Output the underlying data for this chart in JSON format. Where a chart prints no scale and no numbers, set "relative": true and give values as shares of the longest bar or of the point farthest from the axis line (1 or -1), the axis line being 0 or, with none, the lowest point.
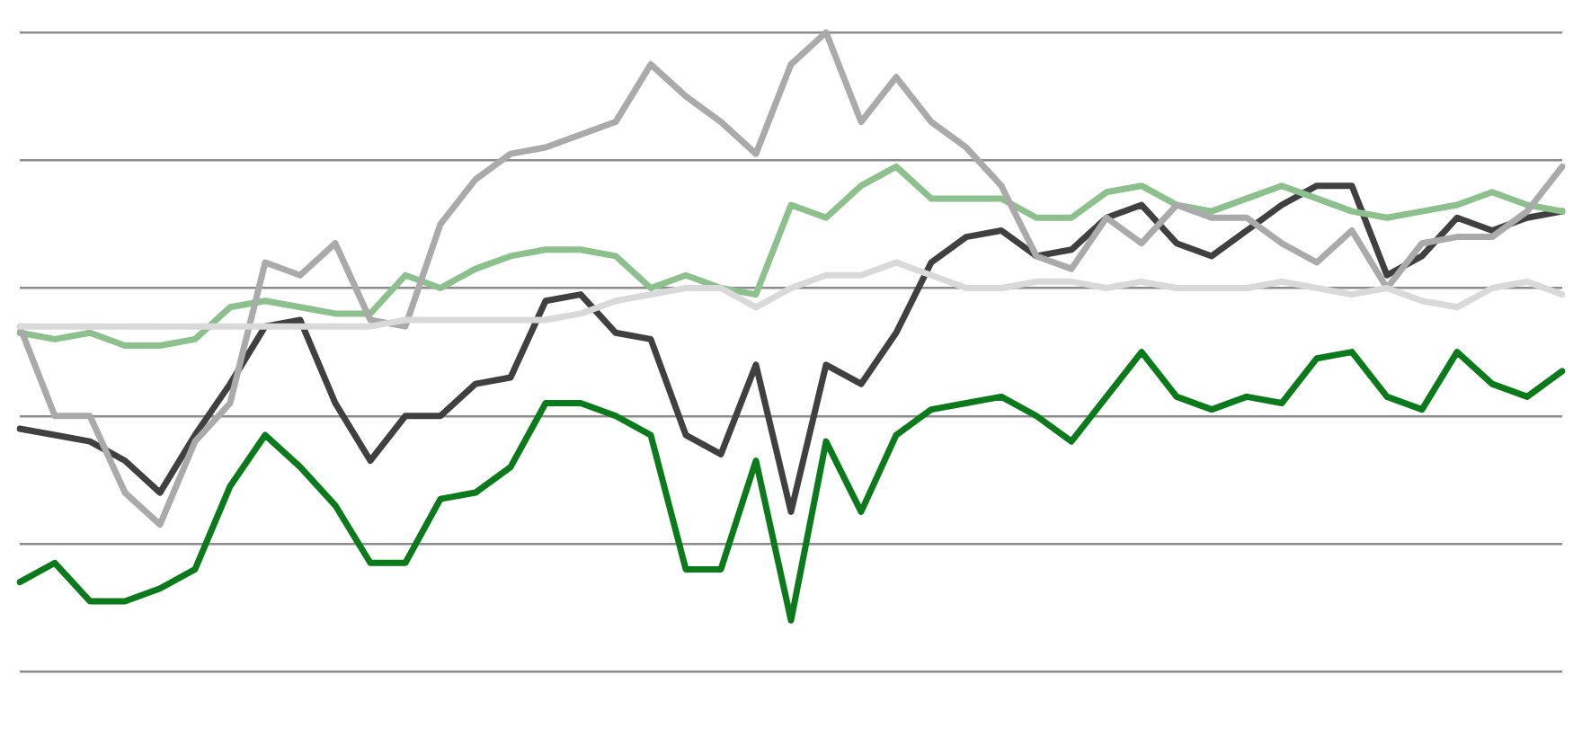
{
  "chart_data": {
    "type": "line",
    "relative": true,
    "grid": "y",
    "legend": false,
    "marker": "none",
    "line_style": "solid",
    "categories": [
      null,
      null,
      null,
      null,
      null,
      null,
      null,
      null,
      null,
      null,
      null,
      null,
      null,
      null,
      null,
      null,
      null,
      null,
      null,
      null,
      null,
      null,
      null,
      null,
      null,
      null,
      null,
      null,
      null,
      null,
      null,
      null,
      null,
      null,
      null,
      null,
      null,
      null,
      null,
      null,
      null,
      null,
      null,
      null,
      null
    ],
    "series": [
      {
        "color": "#d9d9d9",
        "values": [
          0.54,
          0.54,
          0.54,
          0.54,
          0.54,
          0.54,
          0.54,
          0.54,
          0.54,
          0.54,
          0.54,
          0.55,
          0.55,
          0.55,
          0.55,
          0.55,
          0.56,
          0.58,
          0.59,
          0.6,
          0.6,
          0.57,
          0.6,
          0.62,
          0.62,
          0.64,
          0.62,
          0.6,
          0.6,
          0.61,
          0.61,
          0.6,
          0.61,
          0.6,
          0.6,
          0.6,
          0.61,
          0.6,
          0.59,
          0.6,
          0.58,
          0.57,
          0.6,
          0.61,
          0.59
        ]
      },
      {
        "color": "#aaaaaa",
        "values": [
          0.54,
          0.4,
          0.4,
          0.28,
          0.23,
          0.36,
          0.42,
          0.64,
          0.62,
          0.67,
          0.55,
          0.54,
          0.7,
          0.77,
          0.81,
          0.82,
          0.84,
          0.86,
          0.95,
          0.9,
          0.86,
          0.81,
          0.95,
          1.0,
          0.86,
          0.93,
          0.86,
          0.82,
          0.76,
          0.65,
          0.63,
          0.71,
          0.67,
          0.73,
          0.71,
          0.71,
          0.67,
          0.64,
          0.69,
          0.6,
          0.67,
          0.68,
          0.68,
          0.72,
          0.79
        ]
      },
      {
        "color": "#8cc08c",
        "values": [
          0.53,
          0.52,
          0.53,
          0.51,
          0.51,
          0.52,
          0.57,
          0.58,
          0.57,
          0.56,
          0.56,
          0.62,
          0.6,
          0.63,
          0.65,
          0.66,
          0.66,
          0.65,
          0.6,
          0.62,
          0.6,
          0.59,
          0.73,
          0.71,
          0.76,
          0.79,
          0.74,
          0.74,
          0.74,
          0.71,
          0.71,
          0.75,
          0.76,
          0.73,
          0.72,
          0.74,
          0.76,
          0.74,
          0.72,
          0.71,
          0.72,
          0.73,
          0.75,
          0.73,
          0.72
        ]
      },
      {
        "color": "#404040",
        "values": [
          0.38,
          0.37,
          0.36,
          0.33,
          0.28,
          0.37,
          0.45,
          0.54,
          0.55,
          0.42,
          0.33,
          0.4,
          0.4,
          0.45,
          0.46,
          0.58,
          0.59,
          0.53,
          0.52,
          0.37,
          0.34,
          0.48,
          0.25,
          0.48,
          0.45,
          0.53,
          0.64,
          0.68,
          0.69,
          0.65,
          0.66,
          0.71,
          0.73,
          0.67,
          0.65,
          0.69,
          0.73,
          0.76,
          0.76,
          0.62,
          0.65,
          0.71,
          0.69,
          0.71,
          0.72
        ]
      },
      {
        "color": "#0a7a1a",
        "values": [
          0.14,
          0.17,
          0.11,
          0.11,
          0.13,
          0.16,
          0.29,
          0.37,
          0.32,
          0.26,
          0.17,
          0.17,
          0.27,
          0.28,
          0.32,
          0.42,
          0.42,
          0.4,
          0.37,
          0.16,
          0.16,
          0.33,
          0.08,
          0.36,
          0.25,
          0.37,
          0.41,
          0.42,
          0.43,
          0.4,
          0.36,
          0.43,
          0.5,
          0.43,
          0.41,
          0.43,
          0.42,
          0.49,
          0.5,
          0.43,
          0.41,
          0.5,
          0.45,
          0.43,
          0.47
        ]
      }
    ]
  }
}
